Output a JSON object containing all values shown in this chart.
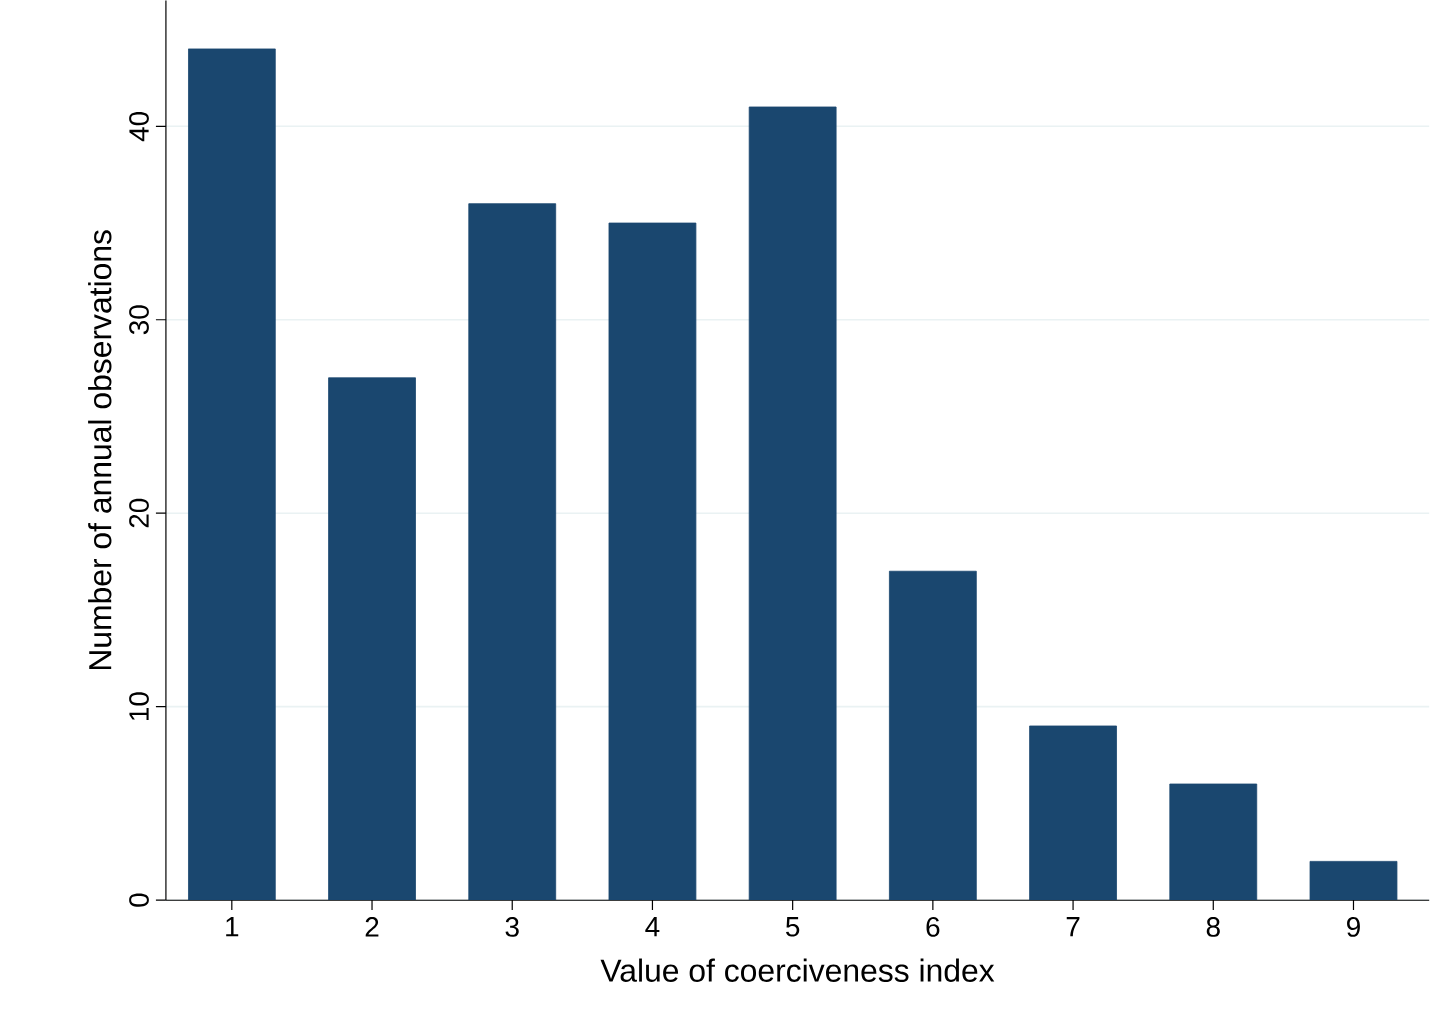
{
  "chart_data": {
    "type": "bar",
    "xlabel": "Value of coerciveness index",
    "ylabel": "Number of annual observations",
    "categories": [
      "1",
      "2",
      "3",
      "4",
      "5",
      "6",
      "7",
      "8",
      "9"
    ],
    "values": [
      44,
      27,
      36,
      35,
      41,
      17,
      9,
      6,
      2
    ],
    "color": "#1a476f",
    "ylim": [
      0,
      46.5
    ],
    "yticks": [
      0,
      10,
      20,
      30,
      40
    ],
    "grid": "y"
  }
}
